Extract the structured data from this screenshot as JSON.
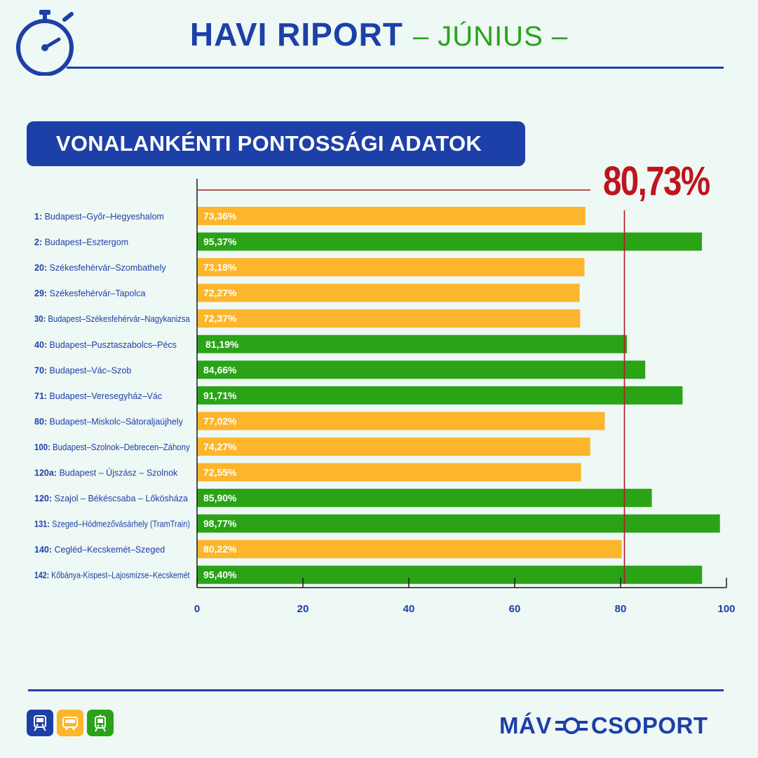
{
  "header": {
    "title": "HAVI RIPORT",
    "subtitle": "– JÚNIUS –"
  },
  "section": {
    "title": "VONALANKÉNTI PONTOSSÁGI ADATOK"
  },
  "average": {
    "label": "80,73%"
  },
  "chart_data": {
    "type": "bar",
    "orientation": "horizontal",
    "title": "VONALANKÉNTI PONTOSSÁGI ADATOK",
    "xlim": [
      0,
      100
    ],
    "xticks": [
      "0",
      "20",
      "40",
      "60",
      "80",
      "100"
    ],
    "reference_line": {
      "value": 80.73,
      "label": "80,73%",
      "color": "#b01722"
    },
    "colors": {
      "below_average": "#fdb52b",
      "above_average": "#2aa317"
    },
    "categories": [
      {
        "num": "1:",
        "name": "Budapest–Győr–Hegyeshalom"
      },
      {
        "num": "2:",
        "name": "Budapest–Esztergom"
      },
      {
        "num": "20:",
        "name": "Székesfehérvár–Szombathely"
      },
      {
        "num": "29:",
        "name": "Székesfehérvár–Tapolca"
      },
      {
        "num": "30:",
        "name": "Budapest–Székesfehérvár–Nagykanizsa"
      },
      {
        "num": "40:",
        "name": "Budapest–Pusztaszabolcs–Pécs"
      },
      {
        "num": "70:",
        "name": "Budapest–Vác–Szob"
      },
      {
        "num": "71:",
        "name": "Budapest–Veresegyház–Vác"
      },
      {
        "num": "80:",
        "name": "Budapest–Miskolc–Sátoraljaújhely"
      },
      {
        "num": "100:",
        "name": "Budapest–Szolnok–Debrecen–Záhony"
      },
      {
        "num": "120a:",
        "name": "Budapest – Újszász – Szolnok"
      },
      {
        "num": "120:",
        "name": "Szajol – Békéscsaba – Lőkösháza"
      },
      {
        "num": "131:",
        "name": "Szeged–Hódmezővásárhely (TramTrain)"
      },
      {
        "num": "140:",
        "name": "Cegléd–Kecskemét–Szeged"
      },
      {
        "num": "142:",
        "name": "Kőbánya-Kispest–Lajosmizse–Kecskemét"
      }
    ],
    "values": [
      73.36,
      95.37,
      73.18,
      72.27,
      72.37,
      81.19,
      84.66,
      91.71,
      77.02,
      74.27,
      72.55,
      85.9,
      98.77,
      80.22,
      95.4
    ],
    "labels": [
      "73,36%",
      "95,37%",
      "73,18%",
      "72,27%",
      "72,37%",
      "81,19%",
      "84,66%",
      "91,71%",
      "77,02%",
      "74,27%",
      "72,55%",
      "85,90%",
      "98,77%",
      "80,22%",
      "95,40%"
    ],
    "categories_status": [
      "below",
      "above",
      "below",
      "below",
      "below",
      "above",
      "above",
      "above",
      "below",
      "below",
      "below",
      "above",
      "above",
      "below",
      "above"
    ]
  },
  "footer": {
    "icons": [
      {
        "name": "train-icon",
        "color": "#1d3fa8"
      },
      {
        "name": "bus-icon",
        "color": "#fdb52b"
      },
      {
        "name": "tram-icon",
        "color": "#2aa317"
      }
    ],
    "logo_left": "MÁV",
    "logo_right": "CSOPORT"
  }
}
